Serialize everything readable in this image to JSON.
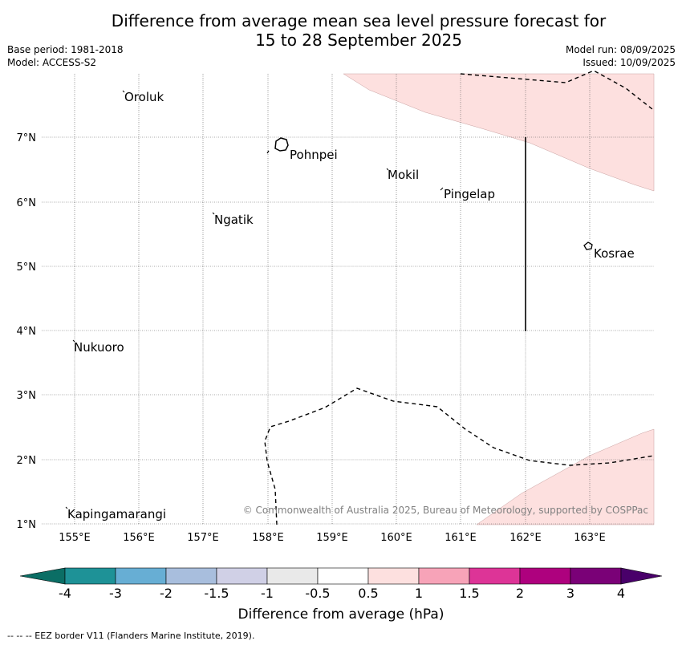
{
  "title_line1": "Difference from average mean sea level pressure forecast for",
  "title_line2": "15 to 28 September 2025",
  "base_period": "Base period: 1981-2018",
  "model": "Model: ACCESS-S2",
  "model_run": "Model run: 08/09/2025",
  "issued": "Issued: 10/09/2025",
  "map": {
    "lon_ticks": [
      "155°E",
      "156°E",
      "157°E",
      "158°E",
      "159°E",
      "160°E",
      "161°E",
      "162°E",
      "163°E"
    ],
    "lat_ticks": [
      "7°N",
      "6°N",
      "5°N",
      "4°N",
      "3°N",
      "2°N",
      "1°N"
    ],
    "places": [
      {
        "name": "Oroluk"
      },
      {
        "name": "Pohnpei"
      },
      {
        "name": "Mokil"
      },
      {
        "name": "Pingelap"
      },
      {
        "name": "Ngatik"
      },
      {
        "name": "Kosrae"
      },
      {
        "name": "Nukuoro"
      },
      {
        "name": "Kapingamarangi"
      }
    ],
    "copyright": "© Commonwealth of Australia 2025, Bureau of Meteorology, supported by COSPPac"
  },
  "colorbar": {
    "labels": [
      "-4",
      "-3",
      "-2",
      "-1.5",
      "-1",
      "-0.5",
      "0.5",
      "1",
      "1.5",
      "2",
      "3",
      "4"
    ],
    "colors": [
      "#0b6e65",
      "#1e9297",
      "#67aed4",
      "#a8bedd",
      "#d0d0e6",
      "#e9e9e9",
      "#ffffff",
      "#fde0df",
      "#f7a3b8",
      "#dd3497",
      "#ae017e",
      "#7a0177",
      "#49006a"
    ],
    "title": "Difference from average (hPa)"
  },
  "footer": "-- -- -- EEZ border V11 (Flanders Marine Institute, 2019)."
}
